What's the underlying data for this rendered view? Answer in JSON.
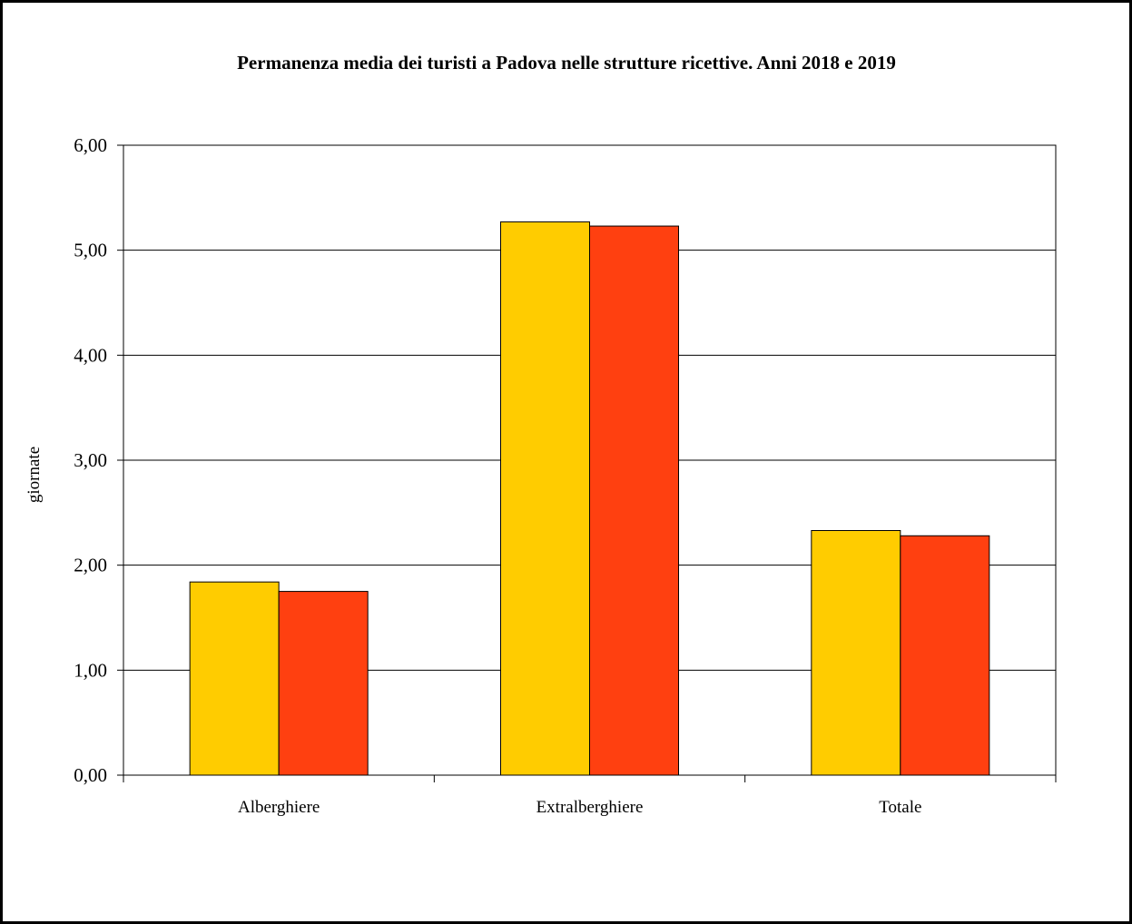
{
  "chart_data": {
    "type": "bar",
    "title": "Permanenza media dei turisti a Padova nelle strutture ricettive. Anni 2018 e 2019",
    "xlabel": "",
    "ylabel": "giornate",
    "ylim": [
      0,
      6
    ],
    "yticks": [
      "0,00",
      "1,00",
      "2,00",
      "3,00",
      "4,00",
      "5,00",
      "6,00"
    ],
    "categories": [
      "Alberghiere",
      "Extralberghiere",
      "Totale"
    ],
    "series": [
      {
        "color": "#FFCC00",
        "values": [
          1.84,
          5.27,
          2.33
        ]
      },
      {
        "color": "#FF4010",
        "values": [
          1.75,
          5.23,
          2.28
        ]
      }
    ],
    "grid": true,
    "legend": "none"
  }
}
